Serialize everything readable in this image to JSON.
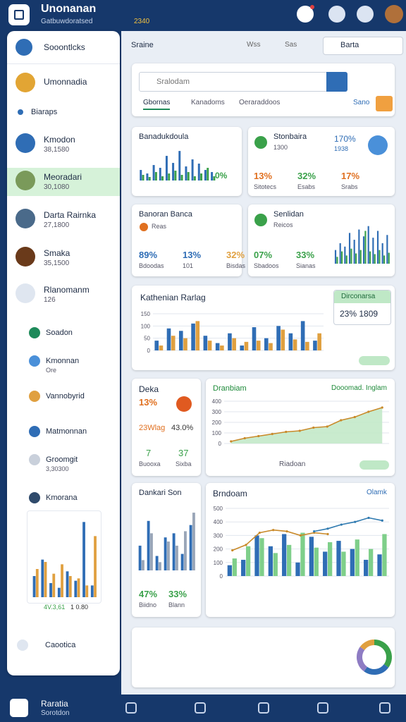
{
  "topbar": {
    "title": "Unonanan",
    "subtitle": "Gatbuwdoratsed",
    "code": "2340"
  },
  "sidebar": {
    "header": "Sooontlcks",
    "user": "Umonnadia",
    "section": "Biaraps",
    "contacts": [
      {
        "name": "Kmodon",
        "value": "38,1580"
      },
      {
        "name": "Meoradari",
        "value": "30,1080"
      },
      {
        "name": "Darta Rairnka",
        "value": "27,1800"
      },
      {
        "name": "Smaka",
        "value": "35,1500"
      },
      {
        "name": "Rlanomanm",
        "value": "126"
      }
    ],
    "menu": [
      {
        "label": "Soadon"
      },
      {
        "label": "Kmonnan",
        "sub": "Ore"
      },
      {
        "label": "Vannobyrid"
      },
      {
        "label": "Matmonnan"
      },
      {
        "label": "Groomgit",
        "sub": "3,30300"
      },
      {
        "label": "Kmorana"
      }
    ],
    "mini_chart": {
      "type": "bar",
      "series": [
        {
          "name": "4V.3,61",
          "color": "#2f6db5",
          "values": [
            45,
            80,
            30,
            20,
            55,
            35,
            160,
            25
          ]
        },
        {
          "name": "1 0.80",
          "color": "#e0a040",
          "values": [
            60,
            75,
            50,
            70,
            45,
            40,
            25,
            130
          ]
        }
      ]
    },
    "footer": "Caootica"
  },
  "header": {
    "left": "Sraine",
    "badge1": "Wss",
    "badge2": "Sas",
    "search": "Barta"
  },
  "search_card": {
    "placeholder": "Sralodam",
    "tabs": [
      "Gbornas",
      "Kanadoms",
      "Oeraraddoos"
    ],
    "action": "Sano"
  },
  "card1": {
    "title": "Banadukdoula",
    "note": "0%",
    "chart": {
      "type": "bar",
      "series": [
        {
          "color": "#2f6db5",
          "values": [
            15,
            10,
            22,
            18,
            35,
            25,
            42,
            20,
            30,
            24,
            15,
            12
          ]
        },
        {
          "color": "#3aa14a",
          "values": [
            8,
            5,
            12,
            6,
            10,
            14,
            8,
            12,
            6,
            10,
            18,
            6
          ]
        }
      ]
    }
  },
  "card2": {
    "title": "Stonbaira",
    "sub": "1300",
    "highlight": "170%",
    "highlight_sub": "1938",
    "stats": [
      {
        "value": "13%",
        "label": "Sitotecs"
      },
      {
        "value": "32%",
        "label": "Esabs"
      },
      {
        "value": "17%",
        "label": "Srabs"
      }
    ]
  },
  "card3": {
    "title": "Banoran Banca",
    "sub": "Reas",
    "stats": [
      {
        "value": "89%",
        "label": "Bdoodas"
      },
      {
        "value": "13%",
        "label": "101"
      },
      {
        "value": "32%",
        "label": "Bisdas"
      }
    ]
  },
  "card4": {
    "title": "Senlidan",
    "sub": "Reicos",
    "stats": [
      {
        "value": "07%",
        "label": "Sbadoos"
      },
      {
        "value": "33%",
        "label": "Sianas"
      }
    ],
    "chart": {
      "type": "bar",
      "series": [
        {
          "color": "#2f6db5",
          "values": [
            20,
            30,
            25,
            45,
            35,
            50,
            40,
            55,
            38,
            48,
            30,
            42
          ]
        },
        {
          "color": "#3aa14a",
          "values": [
            10,
            18,
            12,
            22,
            15,
            20,
            48,
            18,
            14,
            20,
            12,
            16
          ]
        }
      ]
    }
  },
  "big_card": {
    "title": "Kathenian Rarlag",
    "badge": "Dirconarsa",
    "badge_value": "23% 1809",
    "chart": {
      "type": "bar",
      "ylim": [
        0,
        150
      ],
      "yticks": [
        0,
        50,
        100,
        150
      ],
      "series": [
        {
          "color": "#2f6db5",
          "values": [
            40,
            90,
            80,
            110,
            60,
            30,
            70,
            20,
            95,
            50,
            100,
            70,
            120,
            40
          ]
        },
        {
          "color": "#e0a040",
          "values": [
            20,
            60,
            50,
            120,
            40,
            20,
            50,
            35,
            40,
            30,
            85,
            45,
            35,
            70
          ]
        }
      ]
    }
  },
  "deka_card": {
    "title": "Deka",
    "value1": "13%",
    "label1": "23Wlag",
    "value2": "43.0%",
    "stat1": "7",
    "stat1_label": "Buooxa",
    "stat2": "37",
    "stat2_label": "Sixba"
  },
  "line_card": {
    "title": "Dranbiam",
    "subtitle": "Dooomad. Inglam",
    "xlabel": "Riadoan",
    "chart": {
      "type": "area",
      "ylim": [
        0,
        400
      ],
      "yticks": [
        0,
        100,
        200,
        300,
        400
      ],
      "series": [
        {
          "color": "#c98a2a",
          "values": [
            20,
            50,
            70,
            90,
            110,
            120,
            150,
            160,
            220,
            250,
            300,
            340
          ]
        }
      ]
    }
  },
  "dankari_card": {
    "title": "Dankari Son",
    "stats": [
      {
        "value": "47%",
        "label": "Biidno"
      },
      {
        "value": "33%",
        "label": "Blann"
      }
    ],
    "chart": {
      "type": "bar",
      "series": [
        {
          "color": "#2f6db5",
          "values": [
            60,
            120,
            35,
            80,
            90,
            40,
            110
          ]
        },
        {
          "color": "#9aa6b8",
          "values": [
            25,
            90,
            20,
            70,
            60,
            95,
            140
          ]
        }
      ]
    }
  },
  "combo_card": {
    "title": "Brndoam",
    "subtitle": "Olamk",
    "chart": {
      "type": "bar",
      "ylim": [
        0,
        500
      ],
      "yticks": [
        0,
        100,
        200,
        300,
        400,
        500
      ],
      "series": [
        {
          "color": "#2f6db5",
          "values": [
            80,
            120,
            300,
            220,
            310,
            100,
            290,
            180,
            260,
            200,
            120,
            160
          ]
        },
        {
          "color": "#7fcf8a",
          "values": [
            130,
            220,
            280,
            170,
            230,
            320,
            210,
            250,
            180,
            270,
            200,
            310
          ]
        },
        {
          "type": "line",
          "color": "#c98a2a",
          "values": [
            190,
            230,
            320,
            340,
            330,
            300,
            320,
            310,
            null,
            null,
            null,
            null
          ]
        },
        {
          "type": "line",
          "color": "#2f7ab0",
          "values": [
            null,
            null,
            null,
            null,
            null,
            null,
            330,
            350,
            380,
            400,
            430,
            410
          ]
        }
      ]
    }
  },
  "donut": {
    "type": "pie",
    "values": [
      35,
      25,
      25,
      15
    ],
    "colors": [
      "#3aa14a",
      "#2f6db5",
      "#8e7cc3",
      "#e0a040"
    ]
  },
  "bottom_nav": {
    "title": "Raratia",
    "subtitle": "Sorotdon"
  }
}
